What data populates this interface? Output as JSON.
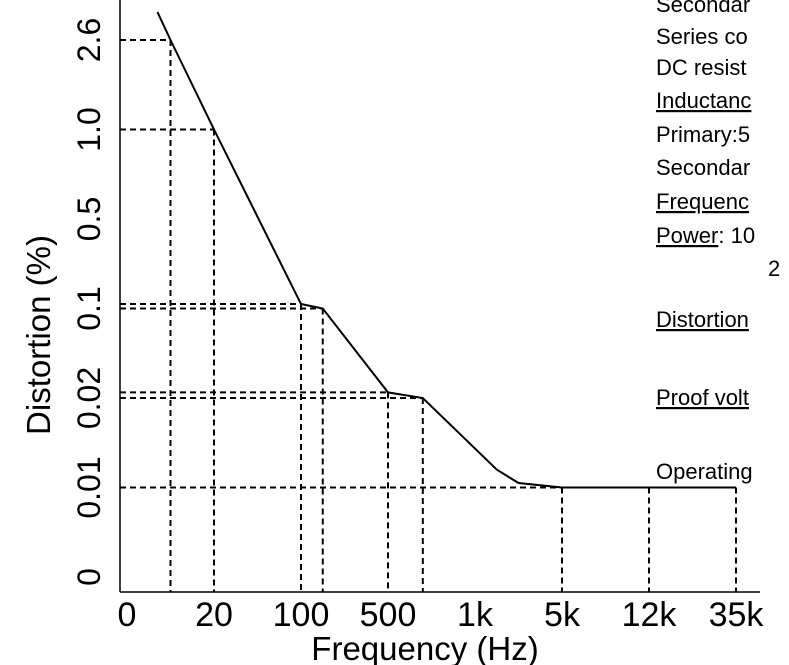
{
  "chart_data": {
    "type": "line",
    "xlabel": "Frequency (Hz)",
    "ylabel": "Distortion (%)",
    "xticks": [
      0,
      20,
      100,
      500,
      {
        "value": 1000,
        "label": "1k"
      },
      {
        "value": 5000,
        "label": "5k"
      },
      {
        "value": 12000,
        "label": "12k"
      },
      {
        "value": 35000,
        "label": "35k"
      }
    ],
    "yticks": [
      0,
      0.01,
      0.02,
      0.1,
      0.5,
      {
        "value": 1.0,
        "label": "1.0"
      },
      2.6
    ],
    "xlim": [
      0,
      40000
    ],
    "ylim": [
      0,
      3.1
    ],
    "color": "#000000",
    "x": [
      7,
      10,
      20,
      100,
      200,
      500,
      700,
      2000,
      3000,
      5000,
      35000
    ],
    "values": [
      3.1,
      2.6,
      1.0,
      0.12,
      0.1,
      0.025,
      0.02,
      0.012,
      0.0105,
      0.01,
      0.01
    ],
    "guide_x": [
      10,
      20,
      100,
      200,
      500,
      700,
      5000,
      12000,
      35000
    ],
    "guide_y": [
      2.6,
      1.0,
      0.12,
      0.1,
      0.025,
      0.02,
      0.01,
      0.01,
      0.01
    ],
    "notes": [
      [
        {
          "text": "Secondar",
          "underline": false
        }
      ],
      [
        {
          "text": "Series co",
          "underline": false
        }
      ],
      [
        {
          "text": "DC resist",
          "underline": false
        }
      ],
      [
        {
          "text": "Inductanc",
          "underline": true
        }
      ],
      [
        {
          "text": "Primary:5",
          "underline": false
        }
      ],
      [
        {
          "text": "Secondar",
          "underline": false
        }
      ],
      [
        {
          "text": "Frequenc",
          "underline": true
        }
      ],
      [
        {
          "text": "Power",
          "underline": true
        },
        {
          "text": ": 10",
          "underline": false
        }
      ],
      [
        {
          "text": "2",
          "underline": false
        }
      ],
      [
        {
          "text": "Distortion",
          "underline": true
        }
      ],
      [
        {
          "text": "Proof volt",
          "underline": true
        }
      ],
      [
        {
          "text": "Operating",
          "underline": false
        }
      ]
    ]
  }
}
